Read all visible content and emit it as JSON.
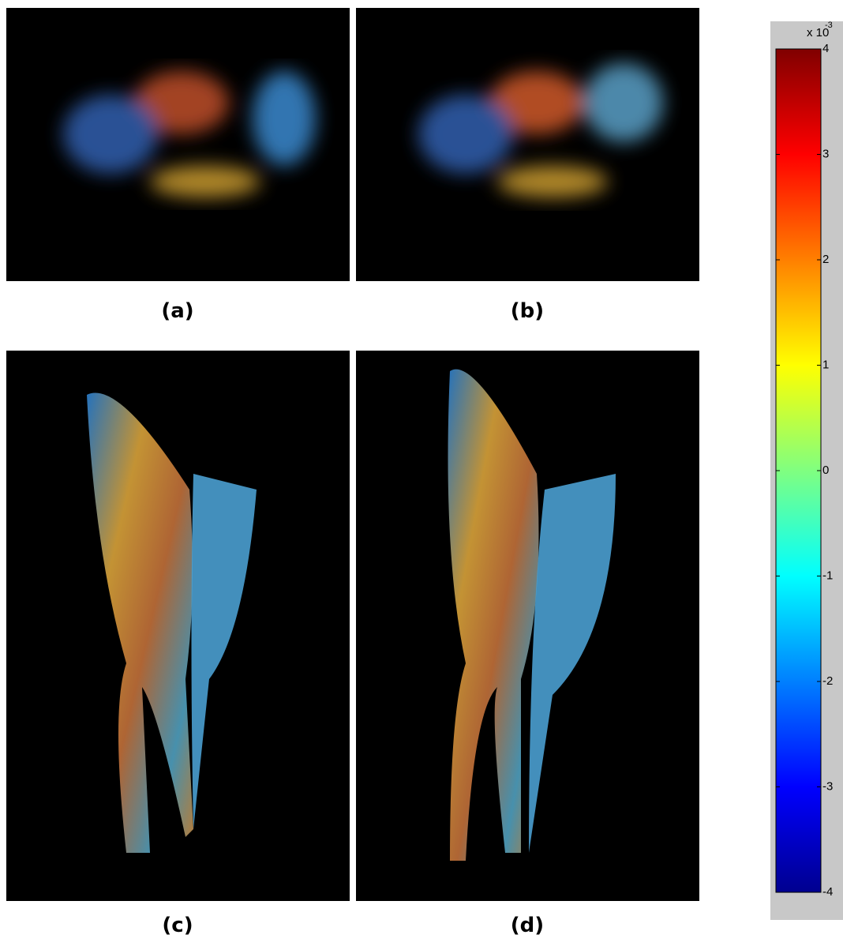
{
  "panels": [
    {
      "label": "(a)"
    },
    {
      "label": "(b)"
    },
    {
      "label": "(c)"
    },
    {
      "label": "(d)"
    }
  ],
  "colorbar": {
    "lim": [
      -4,
      4
    ],
    "ticks": [
      -4,
      -3,
      -2,
      -1,
      0,
      1,
      2,
      3,
      4
    ],
    "scale_label": "x 10",
    "scale_exponent": "-3"
  }
}
